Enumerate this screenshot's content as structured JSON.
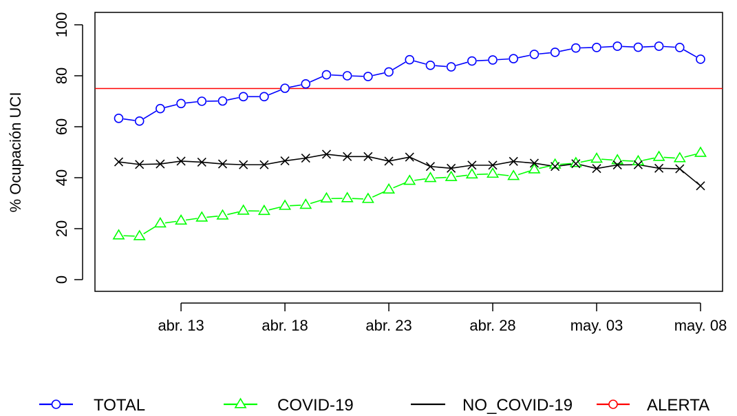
{
  "chart_data": {
    "type": "line",
    "ylabel": "% Ocupación UCI",
    "xlabel": "",
    "ylim": [
      0,
      100
    ],
    "yticks": [
      0,
      20,
      40,
      60,
      80,
      100
    ],
    "xlim": [
      -1.5,
      28.5
    ],
    "x_ticks": [
      {
        "index": 3,
        "label": "abr. 13"
      },
      {
        "index": 8,
        "label": "abr. 18"
      },
      {
        "index": 13,
        "label": "abr. 23"
      },
      {
        "index": 18,
        "label": "abr. 28"
      },
      {
        "index": 23,
        "label": "may. 03"
      },
      {
        "index": 28,
        "label": "may. 08"
      }
    ],
    "dates": [
      "abr. 10",
      "abr. 11",
      "abr. 12",
      "abr. 13",
      "abr. 14",
      "abr. 15",
      "abr. 16",
      "abr. 17",
      "abr. 18",
      "abr. 19",
      "abr. 20",
      "abr. 21",
      "abr. 22",
      "abr. 23",
      "abr. 24",
      "abr. 25",
      "abr. 26",
      "abr. 27",
      "abr. 28",
      "abr. 29",
      "abr. 30",
      "may. 01",
      "may. 02",
      "may. 03",
      "may. 04",
      "may. 05",
      "may. 06",
      "may. 07",
      "may. 08"
    ],
    "series": [
      {
        "name": "TOTAL",
        "color": "#0000ff",
        "marker": "circle",
        "values": [
          63.3,
          62.2,
          67.1,
          69.1,
          70.0,
          70.1,
          71.8,
          71.8,
          75.1,
          76.8,
          80.4,
          80.0,
          79.7,
          81.5,
          86.3,
          84.1,
          83.5,
          85.8,
          86.2,
          86.7,
          88.4,
          89.2,
          90.9,
          91.1,
          91.6,
          91.2,
          91.6,
          91.1,
          86.5
        ]
      },
      {
        "name": "COVID-19",
        "color": "#00ff00",
        "marker": "triangle",
        "values": [
          17.3,
          17.0,
          22.0,
          23.1,
          24.3,
          25.1,
          27.0,
          26.9,
          28.9,
          29.3,
          31.8,
          31.9,
          31.6,
          35.3,
          38.7,
          39.8,
          40.2,
          41.2,
          41.5,
          40.6,
          43.2,
          45.1,
          45.7,
          47.4,
          46.8,
          46.4,
          48.1,
          47.6,
          49.7
        ]
      },
      {
        "name": "NO_COVID-19",
        "color": "#000000",
        "marker": "cross",
        "values": [
          46.2,
          45.2,
          45.4,
          46.5,
          46.1,
          45.4,
          45.1,
          45.1,
          46.6,
          47.7,
          49.2,
          48.3,
          48.3,
          46.5,
          48.1,
          44.4,
          43.7,
          44.9,
          44.9,
          46.4,
          45.7,
          44.4,
          45.5,
          43.6,
          45.0,
          45.1,
          43.7,
          43.5,
          36.8
        ]
      },
      {
        "name": "ALERTA",
        "color": "#ff0000",
        "marker": "circle",
        "constant": 75
      }
    ]
  }
}
